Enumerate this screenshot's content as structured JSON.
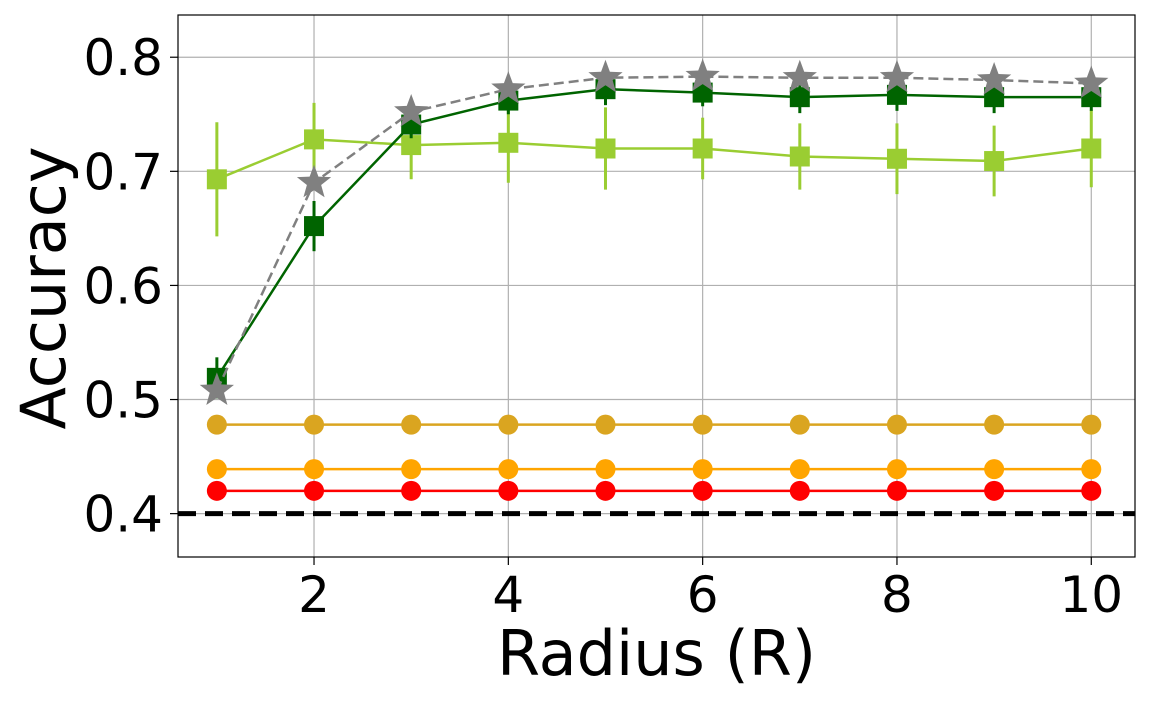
{
  "chart_data": {
    "type": "line",
    "title": "",
    "xlabel": "Radius (R)",
    "ylabel": "Accuracy",
    "xlim": [
      0.6,
      10.45
    ],
    "ylim": [
      0.362,
      0.837
    ],
    "xticks": [
      2,
      4,
      6,
      8,
      10
    ],
    "yticks": [
      0.4,
      0.5,
      0.6,
      0.7,
      0.8
    ],
    "xtick_labels": [
      "2",
      "4",
      "6",
      "8",
      "10"
    ],
    "ytick_labels": [
      "0.4",
      "0.5",
      "0.6",
      "0.7",
      "0.8"
    ],
    "grid": true,
    "legend": "none",
    "x": [
      1,
      2,
      3,
      4,
      5,
      6,
      7,
      8,
      9,
      10
    ],
    "series": [
      {
        "color": "#9acd32",
        "marker": "square",
        "line_style": "solid",
        "values": [
          0.693,
          0.728,
          0.723,
          0.725,
          0.72,
          0.72,
          0.713,
          0.711,
          0.709,
          0.72
        ],
        "error": [
          0.05,
          0.032,
          0.03,
          0.035,
          0.036,
          0.027,
          0.029,
          0.031,
          0.031,
          0.034
        ]
      },
      {
        "color": "#006400",
        "marker": "square",
        "line_style": "solid",
        "values": [
          0.519,
          0.652,
          0.741,
          0.762,
          0.772,
          0.769,
          0.765,
          0.767,
          0.765,
          0.765
        ],
        "error": [
          0.018,
          0.022,
          0.012,
          0.012,
          0.014,
          0.012,
          0.014,
          0.014,
          0.014,
          0.012
        ]
      },
      {
        "color": "#808080",
        "marker": "star",
        "line_style": "dashed",
        "values": [
          0.508,
          0.69,
          0.752,
          0.772,
          0.782,
          0.783,
          0.782,
          0.782,
          0.78,
          0.777
        ]
      },
      {
        "color": "#daa520",
        "marker": "circle",
        "line_style": "solid",
        "values": [
          0.478,
          0.478,
          0.478,
          0.478,
          0.478,
          0.478,
          0.478,
          0.478,
          0.478,
          0.478
        ]
      },
      {
        "color": "#ffa500",
        "marker": "circle",
        "line_style": "solid",
        "values": [
          0.439,
          0.439,
          0.439,
          0.439,
          0.439,
          0.439,
          0.439,
          0.439,
          0.439,
          0.439
        ]
      },
      {
        "color": "#ff0000",
        "marker": "circle",
        "line_style": "solid",
        "values": [
          0.42,
          0.42,
          0.42,
          0.42,
          0.42,
          0.42,
          0.42,
          0.42,
          0.42,
          0.42
        ]
      }
    ],
    "reference_line": {
      "y": 0.4,
      "color": "#000000",
      "line_style": "dashed"
    }
  }
}
